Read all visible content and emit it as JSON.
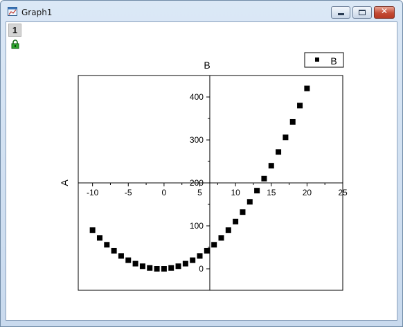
{
  "window": {
    "title": "Graph1",
    "icons": {
      "app": "graph-window-icon",
      "lock": "lock-icon",
      "minimize": "minimize-icon",
      "maximize": "maximize-icon",
      "close": "close-icon"
    }
  },
  "layer_tab": {
    "label": "1"
  },
  "colors": {
    "marker": "#000000",
    "close_button": "#c34b35",
    "frame": "#6f8aa6"
  },
  "chart_data": {
    "type": "scatter",
    "top_axis_title": "B",
    "ylabel": "A",
    "legend": {
      "label": "B",
      "position": "top-right"
    },
    "xlim": [
      -12,
      25
    ],
    "ylim": [
      -50,
      450
    ],
    "x_ticks": [
      {
        "value": -10,
        "label": "-10"
      },
      {
        "value": -5,
        "label": "-5"
      },
      {
        "value": 0,
        "label": "0"
      },
      {
        "value": 5,
        "label": "5"
      },
      {
        "value": 10,
        "label": "10"
      },
      {
        "value": 15,
        "label": "15"
      },
      {
        "value": 20,
        "label": "20"
      },
      {
        "value": 25,
        "label": "25"
      }
    ],
    "y_ticks": [
      {
        "value": 0,
        "label": "0"
      },
      {
        "value": 100,
        "label": "100"
      },
      {
        "value": 200,
        "label": "200"
      },
      {
        "value": 300,
        "label": "300"
      },
      {
        "value": 400,
        "label": "400"
      }
    ],
    "series": [
      {
        "name": "B",
        "marker": "square",
        "x": [
          -10,
          -9,
          -8,
          -7,
          -6,
          -5,
          -4,
          -3,
          -2,
          -1,
          0,
          1,
          2,
          3,
          4,
          5,
          6,
          7,
          8,
          9,
          10,
          11,
          12,
          13,
          14,
          15,
          16,
          17,
          18,
          19,
          20
        ],
        "y": [
          90,
          72,
          56,
          42,
          30,
          20,
          12,
          6,
          2,
          0,
          0,
          2,
          6,
          12,
          20,
          30,
          42,
          56,
          72,
          90,
          110,
          132,
          156,
          182,
          210,
          240,
          272,
          306,
          342,
          380,
          420
        ]
      }
    ]
  }
}
